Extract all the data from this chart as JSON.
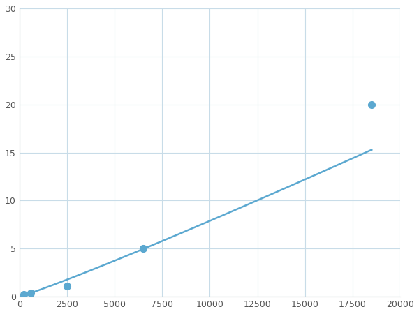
{
  "x_points": [
    250,
    600,
    2500,
    6500,
    18500
  ],
  "y_points": [
    0.2,
    0.35,
    1.1,
    5.0,
    20.0
  ],
  "xlim": [
    0,
    20000
  ],
  "ylim": [
    0,
    30
  ],
  "xticks": [
    0,
    2500,
    5000,
    7500,
    10000,
    12500,
    15000,
    17500,
    20000
  ],
  "yticks": [
    0,
    5,
    10,
    15,
    20,
    25,
    30
  ],
  "xtick_labels": [
    "0",
    "2500",
    "5000",
    "7500",
    "10000",
    "12500",
    "15000",
    "17500",
    "20000"
  ],
  "ytick_labels": [
    "0",
    "5",
    "10",
    "15",
    "20",
    "25",
    "30"
  ],
  "line_color": "#5ba8d0",
  "marker_color": "#5ba8d0",
  "marker_size": 7,
  "line_width": 1.8,
  "grid_color": "#c8dce8",
  "background_color": "#ffffff"
}
